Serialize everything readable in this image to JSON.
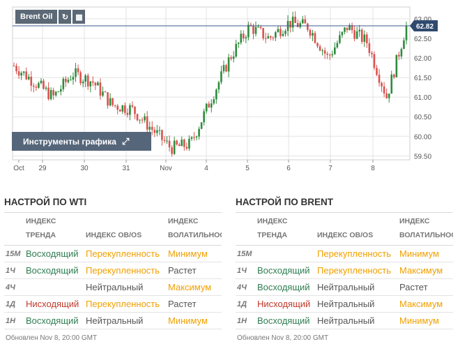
{
  "chart": {
    "instrument": "Brent Oil",
    "tools_banner": "Инструменты графика",
    "current_price": "62.82",
    "price_ticks": [
      "63.00",
      "62.50",
      "62.00",
      "61.50",
      "61.00",
      "60.50",
      "60.00",
      "59.50"
    ],
    "date_ticks": [
      "Oct",
      "29",
      "30",
      "31",
      "Nov",
      "4",
      "5",
      "6",
      "7",
      "8"
    ],
    "colors": {
      "up": "#2e8b3d",
      "down": "#d9534f",
      "price_line": "#3b5b8c",
      "grid": "#e3e3e3"
    }
  },
  "chart_data": {
    "type": "candlestick",
    "ylim": [
      59.4,
      63.3
    ],
    "x": [
      "Oct",
      "29",
      "30",
      "31",
      "Nov",
      "4",
      "5",
      "6",
      "7",
      "8"
    ],
    "close_path": [
      {
        "x": "Oct",
        "y": 61.8
      },
      {
        "x": "29",
        "y": 61.4
      },
      {
        "x": "29",
        "y": 61.0
      },
      {
        "x": "30",
        "y": 61.6
      },
      {
        "x": "30",
        "y": 61.4
      },
      {
        "x": "31",
        "y": 60.8
      },
      {
        "x": "31",
        "y": 60.7
      },
      {
        "x": "31",
        "y": 60.2
      },
      {
        "x": "Nov",
        "y": 59.7
      },
      {
        "x": "Nov",
        "y": 59.8
      },
      {
        "x": "4",
        "y": 60.9
      },
      {
        "x": "4",
        "y": 62.0
      },
      {
        "x": "5",
        "y": 62.8
      },
      {
        "x": "5",
        "y": 62.5
      },
      {
        "x": "6",
        "y": 62.9
      },
      {
        "x": "6",
        "y": 62.8
      },
      {
        "x": "7",
        "y": 62.0
      },
      {
        "x": "7",
        "y": 62.8
      },
      {
        "x": "8",
        "y": 62.4
      },
      {
        "x": "8",
        "y": 61.0
      },
      {
        "x": "8",
        "y": 62.82
      }
    ]
  },
  "sections": [
    {
      "title": "НАСТРОЙ ПО WTI",
      "headers": {
        "trend_1": "ИНДЕКС",
        "trend_2": "ТРЕНДА",
        "ob": "ИНДЕКС OB/OS",
        "vol_1": "ИНДЕКС",
        "vol_2": "ВОЛАТИЛЬНОСТИ"
      },
      "rows": [
        {
          "tf": "15M",
          "trend": "Восходящий",
          "ob": "Перекупленность",
          "vol": "Минимум"
        },
        {
          "tf": "1Ч",
          "trend": "Восходящий",
          "ob": "Перекупленность",
          "vol": "Растет"
        },
        {
          "tf": "4Ч",
          "trend": "",
          "ob": "Нейтральный",
          "vol": "Максимум"
        },
        {
          "tf": "1Д",
          "trend": "Нисходящий",
          "ob": "Перекупленность",
          "vol": "Растет"
        },
        {
          "tf": "1Н",
          "trend": "Восходящий",
          "ob": "Нейтральный",
          "vol": "Минимум"
        }
      ],
      "updated": "Обновлен Nov 8, 20:00 GMT"
    },
    {
      "title": "НАСТРОЙ ПО BRENT",
      "headers": {
        "trend_1": "ИНДЕКС",
        "trend_2": "ТРЕНДА",
        "ob": "ИНДЕКС OB/OS",
        "vol_1": "ИНДЕКС",
        "vol_2": "ВОЛАТИЛЬНОСТИ"
      },
      "rows": [
        {
          "tf": "15M",
          "trend": "",
          "ob": "Перекупленность",
          "vol": "Минимум"
        },
        {
          "tf": "1Ч",
          "trend": "Восходящий",
          "ob": "Перекупленность",
          "vol": "Максимум"
        },
        {
          "tf": "4Ч",
          "trend": "Восходящий",
          "ob": "Нейтральный",
          "vol": "Растет"
        },
        {
          "tf": "1Д",
          "trend": "Нисходящий",
          "ob": "Нейтральный",
          "vol": "Максимум"
        },
        {
          "tf": "1Н",
          "trend": "Восходящий",
          "ob": "Нейтральный",
          "vol": "Минимум"
        }
      ],
      "updated": "Обновлен Nov 8, 20:00 GMT"
    }
  ]
}
